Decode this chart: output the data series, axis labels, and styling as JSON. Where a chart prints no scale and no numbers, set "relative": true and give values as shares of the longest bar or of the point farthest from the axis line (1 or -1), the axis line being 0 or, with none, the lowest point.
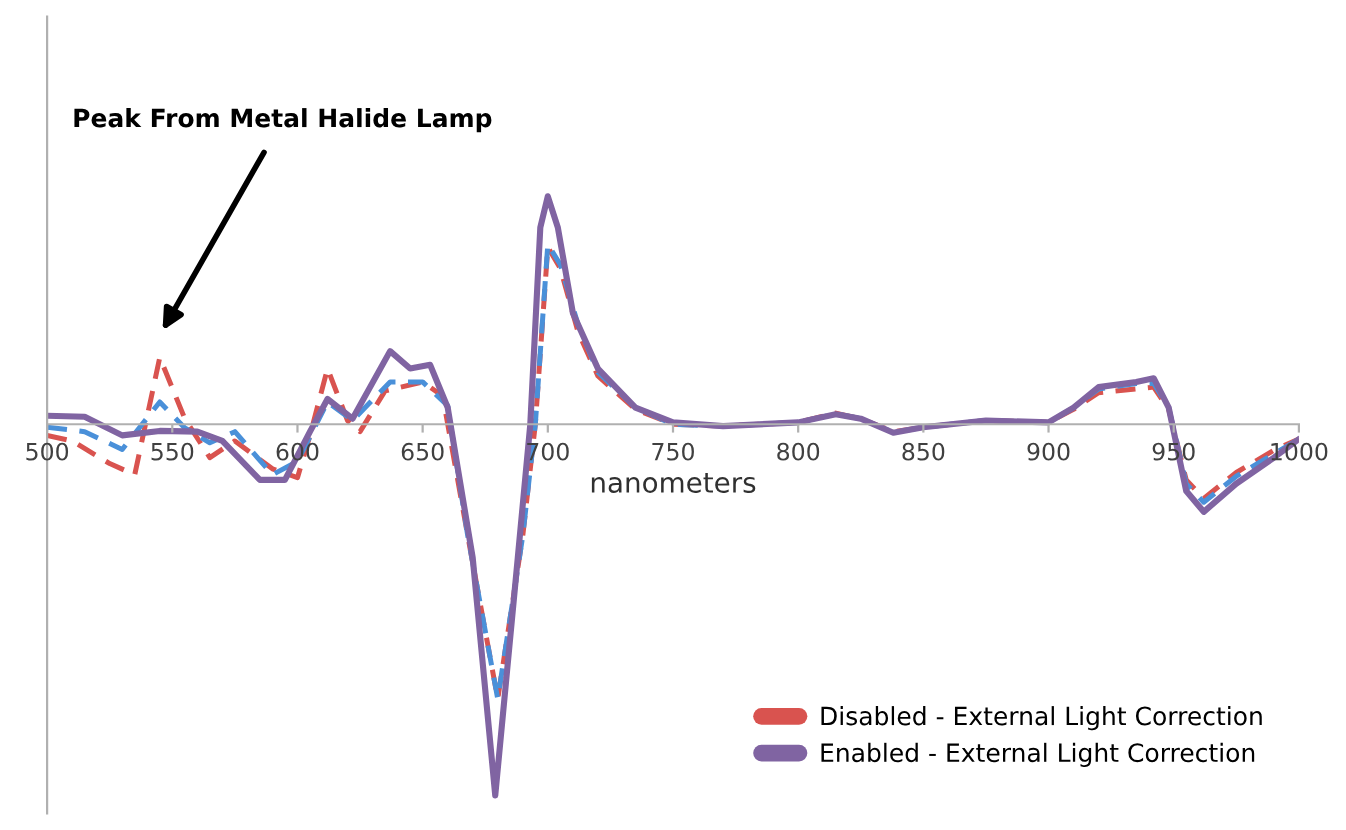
{
  "chart_data": {
    "type": "line",
    "relative": true,
    "xlabel": "nanometers",
    "xlim": [
      500,
      1000
    ],
    "xticks": [
      500,
      550,
      600,
      650,
      700,
      750,
      800,
      850,
      900,
      950,
      1000
    ],
    "grid": false,
    "legend": "bottom right",
    "marker": "none",
    "annotations": [
      "Peak From Metal Halide Lamp"
    ],
    "series": [
      {
        "name": "Disabled - External Light Correction",
        "color": "#d9534f",
        "line_style": "dashed",
        "x": [
          500,
          510,
          525,
          535,
          545,
          555,
          565,
          575,
          590,
          600,
          605,
          612,
          620,
          625,
          635,
          650,
          658,
          668,
          680,
          690,
          695,
          700,
          705,
          712,
          720,
          735,
          750,
          770,
          800,
          815,
          825,
          838,
          850,
          875,
          900,
          910,
          920,
          935,
          942,
          948,
          955,
          962,
          975,
          990,
          1000
        ],
        "values": [
          -0.03,
          -0.045,
          -0.106,
          -0.136,
          0.18,
          0.015,
          -0.09,
          -0.045,
          -0.12,
          -0.144,
          -0.03,
          0.15,
          0.01,
          -0.02,
          0.09,
          0.114,
          0.076,
          -0.3,
          -0.74,
          -0.3,
          0.0,
          0.477,
          0.42,
          0.25,
          0.13,
          0.04,
          0.0,
          -0.005,
          0.005,
          0.03,
          0.015,
          -0.02,
          -0.008,
          0.01,
          0.005,
          0.04,
          0.085,
          0.095,
          0.1,
          0.04,
          -0.15,
          -0.2,
          -0.13,
          -0.07,
          -0.04
        ]
      },
      {
        "color": "#4a90d9",
        "line_style": "dashed",
        "x": [
          500,
          515,
          530,
          545,
          555,
          565,
          575,
          590,
          600,
          612,
          622,
          637,
          650,
          660,
          668,
          680,
          690,
          695,
          700,
          705,
          712,
          720,
          735,
          750,
          770,
          800,
          815,
          825,
          838,
          850,
          875,
          900,
          910,
          920,
          935,
          942,
          948,
          955,
          962,
          975,
          990,
          1000
        ],
        "values": [
          -0.008,
          -0.02,
          -0.068,
          0.06,
          -0.01,
          -0.05,
          -0.02,
          -0.136,
          -0.1,
          0.06,
          0.01,
          0.114,
          0.114,
          0.05,
          -0.3,
          -0.74,
          -0.3,
          0.0,
          0.485,
          0.43,
          0.27,
          0.14,
          0.045,
          0.0,
          -0.005,
          0.005,
          0.028,
          0.015,
          -0.022,
          -0.008,
          0.01,
          0.005,
          0.045,
          0.095,
          0.11,
          0.11,
          0.045,
          -0.16,
          -0.21,
          -0.14,
          -0.08,
          -0.04
        ]
      },
      {
        "name": "Enabled - External Light Correction",
        "color": "#8064a2",
        "line_style": "solid",
        "x": [
          500,
          515,
          530,
          545,
          560,
          570,
          585,
          595,
          605,
          612,
          622,
          637,
          645,
          653,
          660,
          670,
          679,
          688,
          693,
          697,
          700,
          704,
          710,
          720,
          735,
          750,
          770,
          800,
          815,
          825,
          838,
          850,
          875,
          900,
          910,
          920,
          935,
          942,
          948,
          955,
          962,
          975,
          990,
          1000
        ],
        "values": [
          0.023,
          0.02,
          -0.03,
          -0.018,
          -0.02,
          -0.045,
          -0.15,
          -0.15,
          -0.02,
          0.068,
          0.015,
          0.197,
          0.15,
          0.16,
          0.045,
          -0.36,
          -1,
          -0.36,
          0.0,
          0.53,
          0.614,
          0.53,
          0.3,
          0.15,
          0.045,
          0.005,
          -0.005,
          0.005,
          0.027,
          0.015,
          -0.023,
          -0.008,
          0.01,
          0.005,
          0.045,
          0.1,
          0.114,
          0.124,
          0.045,
          -0.18,
          -0.236,
          -0.16,
          -0.09,
          -0.04
        ]
      }
    ]
  }
}
